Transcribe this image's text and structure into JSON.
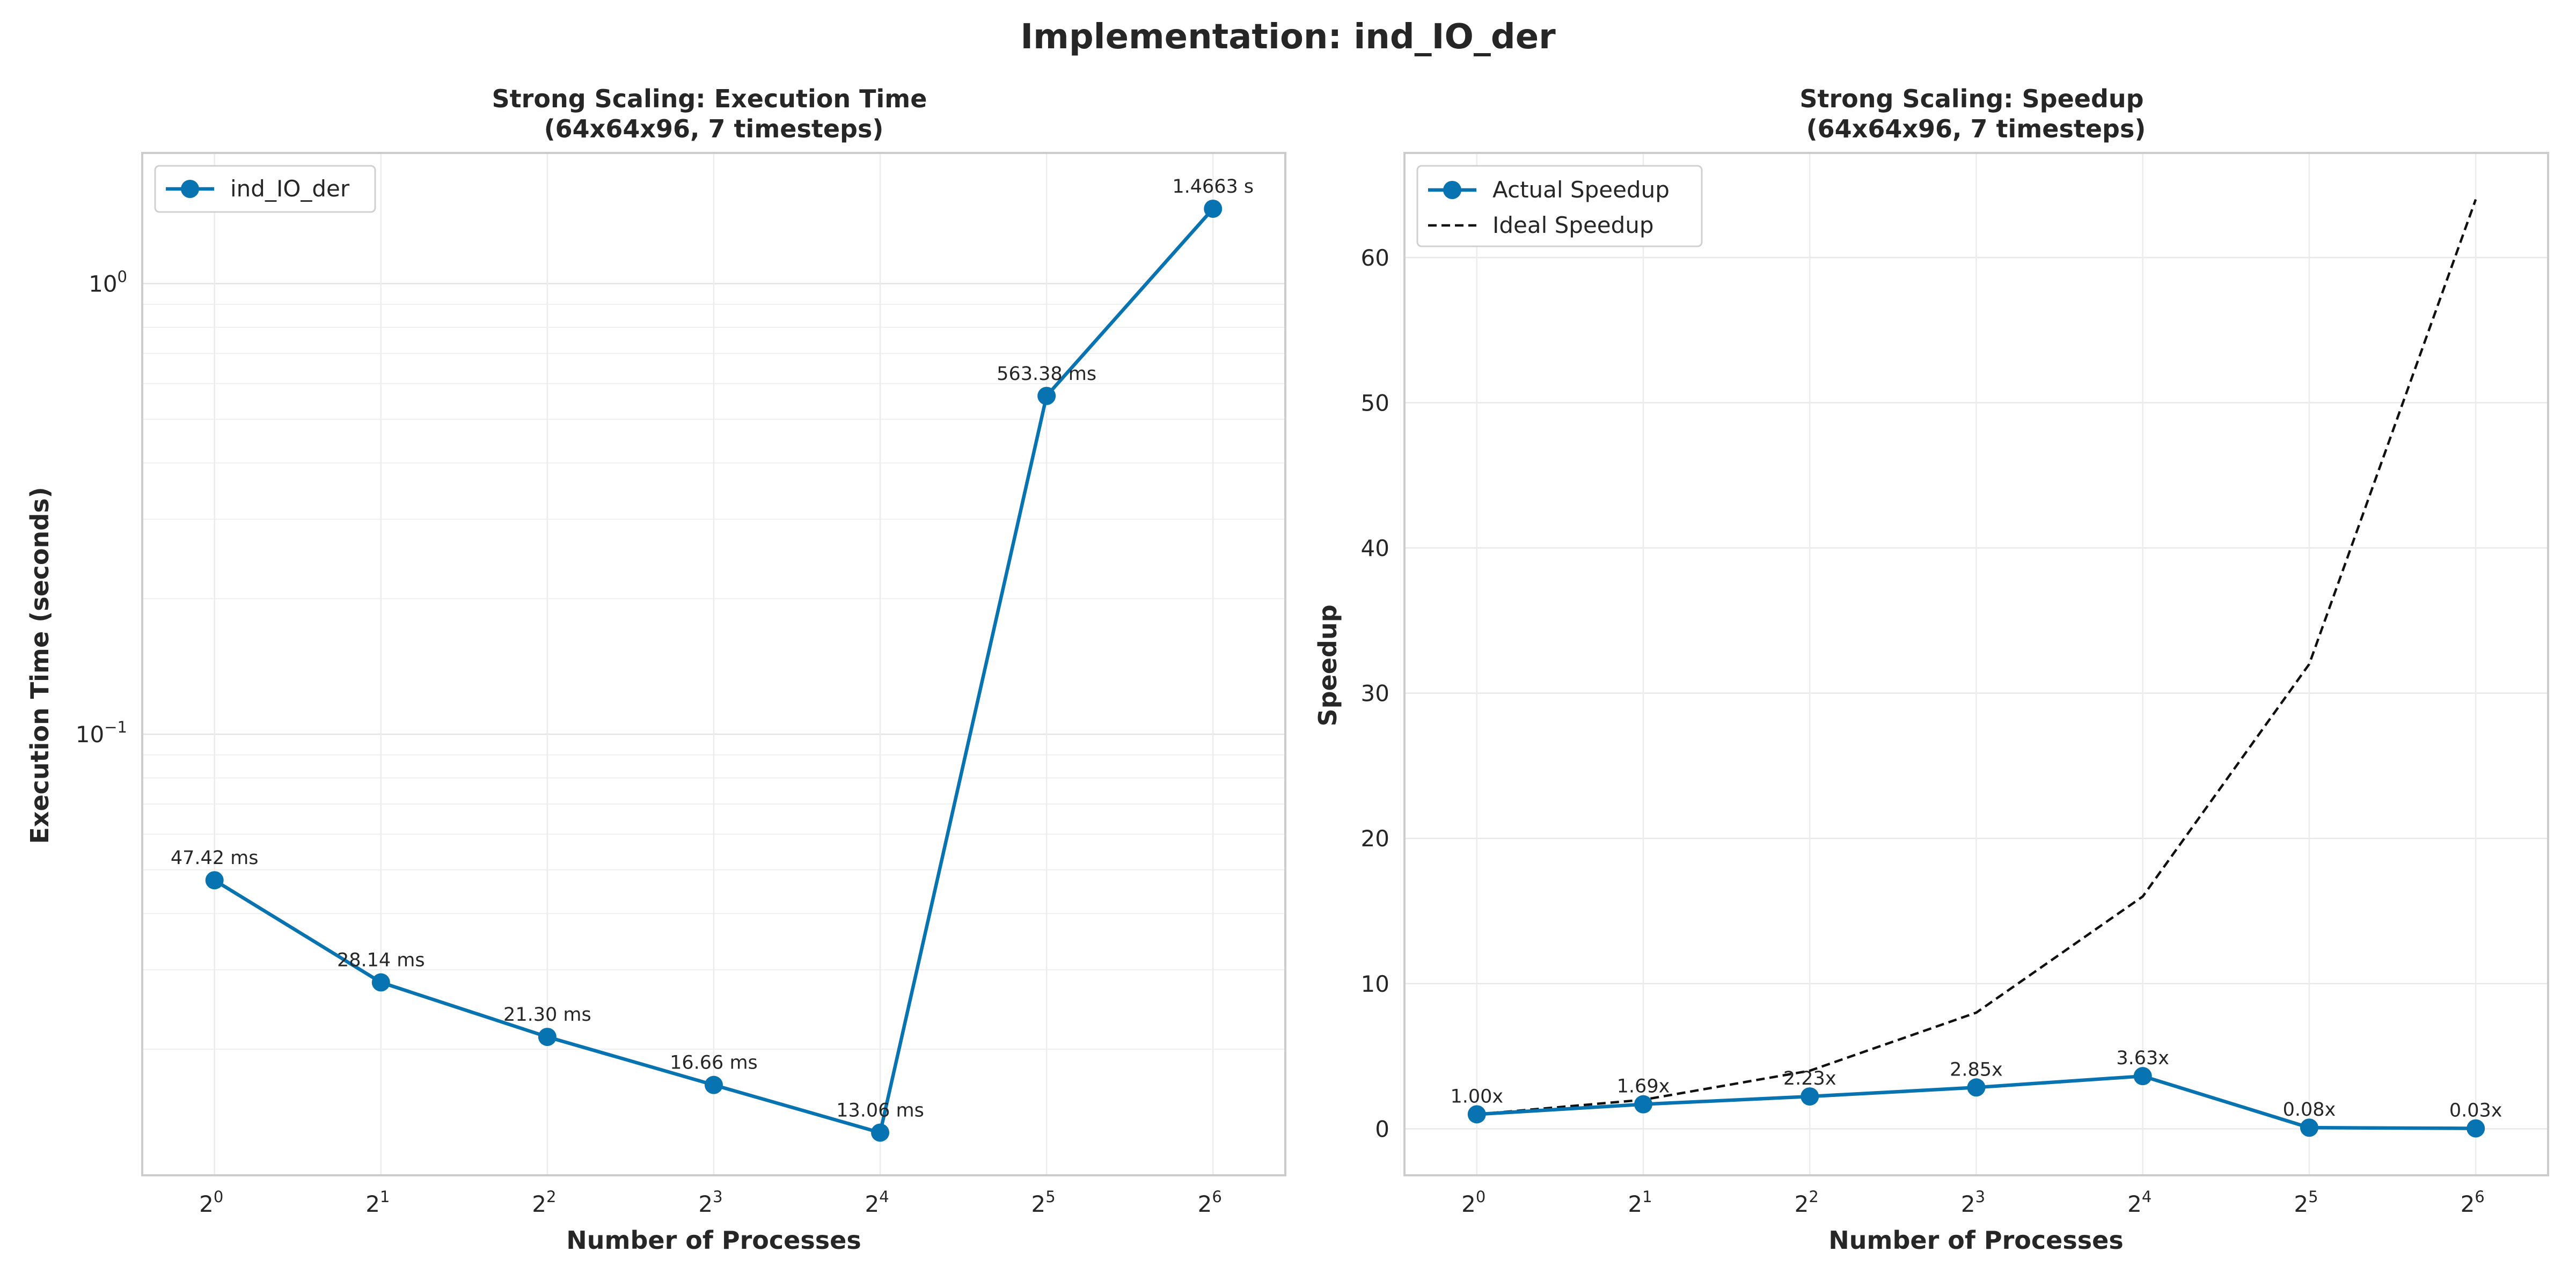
{
  "figure": {
    "suptitle": "Implementation: ind_IO_der"
  },
  "chart_data": [
    {
      "type": "line",
      "title_line1": "Strong Scaling: Execution Time",
      "title_line2": "(64x64x96, 7 timesteps)",
      "xlabel": "Number of Processes",
      "ylabel": "Execution Time (seconds)",
      "xscale": "log2",
      "yscale": "log10",
      "grid": true,
      "legend_position": "upper-left",
      "x": [
        1,
        2,
        4,
        8,
        16,
        32,
        64
      ],
      "x_tick_exponents": [
        "0",
        "1",
        "2",
        "3",
        "4",
        "5",
        "6"
      ],
      "y_tick_labels": [
        {
          "value": 1,
          "exponent": "0"
        },
        {
          "value": 0.1,
          "exponent": "−1"
        }
      ],
      "ylim": [
        0.0105,
        1.95
      ],
      "series": [
        {
          "name": "ind_IO_der",
          "color": "#0773b1",
          "values": [
            0.04742,
            0.02814,
            0.0213,
            0.01666,
            0.01306,
            0.56338,
            1.4663
          ],
          "labels": [
            "47.42 ms",
            "28.14 ms",
            "21.30 ms",
            "16.66 ms",
            "13.06 ms",
            "563.38 ms",
            "1.4663 s"
          ]
        }
      ]
    },
    {
      "type": "line",
      "title_line1": "Strong Scaling: Speedup",
      "title_line2": "(64x64x96, 7 timesteps)",
      "xlabel": "Number of Processes",
      "ylabel": "Speedup",
      "xscale": "log2",
      "yscale": "linear",
      "grid": true,
      "legend_position": "upper-left",
      "x": [
        1,
        2,
        4,
        8,
        16,
        32,
        64
      ],
      "x_tick_exponents": [
        "0",
        "1",
        "2",
        "3",
        "4",
        "5",
        "6"
      ],
      "y_ticks": [
        0,
        10,
        20,
        30,
        40,
        50,
        60
      ],
      "ylim": [
        -3.2,
        67.2
      ],
      "series": [
        {
          "name": "Actual Speedup",
          "color": "#0773b1",
          "style": "solid-marker",
          "values": [
            1.0,
            1.69,
            2.23,
            2.85,
            3.63,
            0.08,
            0.03
          ],
          "labels": [
            "1.00x",
            "1.69x",
            "2.23x",
            "2.85x",
            "3.63x",
            "0.08x",
            "0.03x"
          ]
        },
        {
          "name": "Ideal Speedup",
          "color": "#111111",
          "style": "dashed",
          "values": [
            1,
            2,
            4,
            8,
            16,
            32,
            64
          ]
        }
      ]
    }
  ]
}
